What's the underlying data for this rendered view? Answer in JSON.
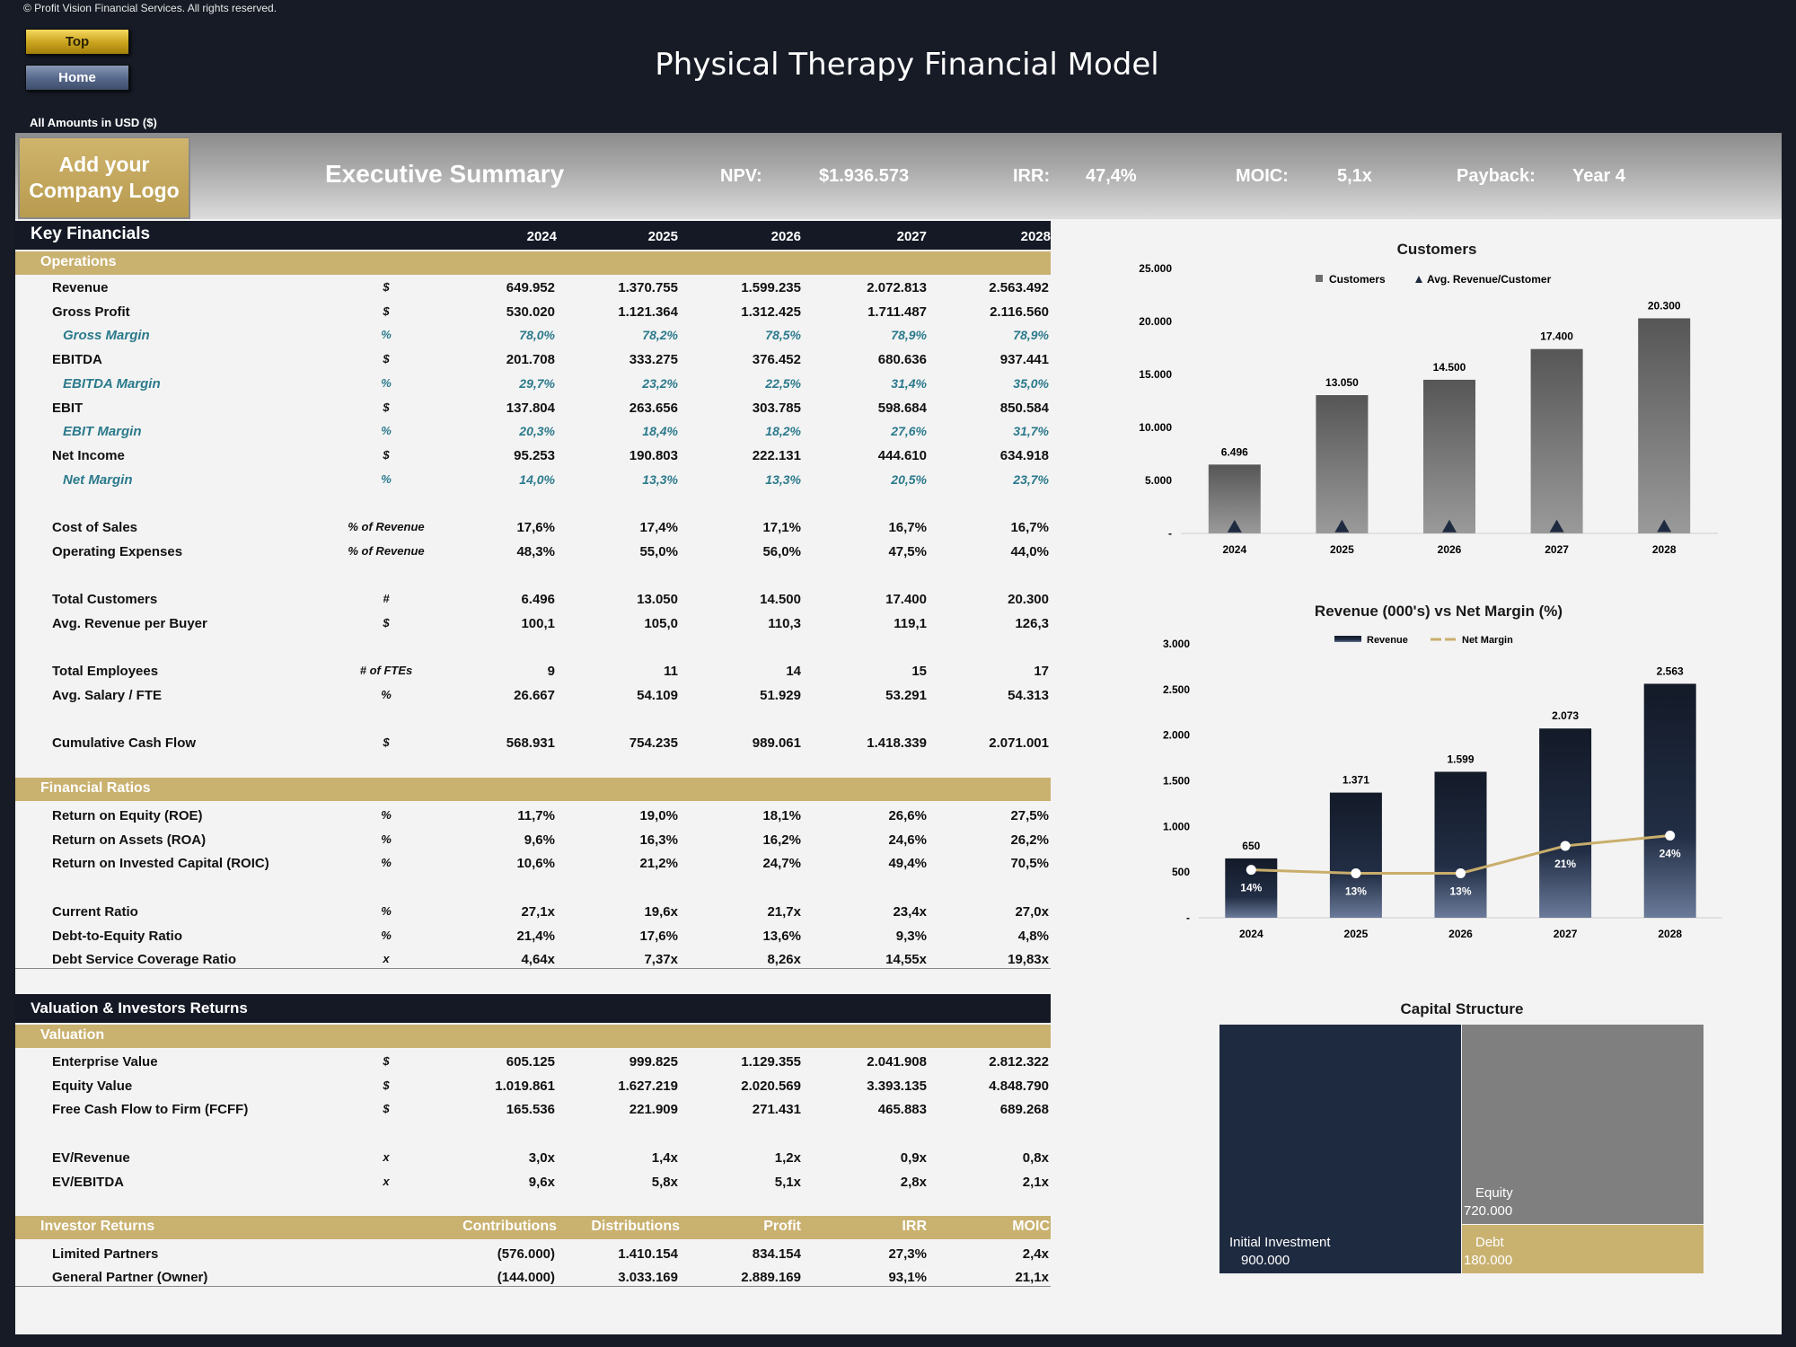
{
  "copyright": "© Profit Vision Financial Services. All rights reserved.",
  "nav": {
    "top_label": "Top",
    "home_label": "Home"
  },
  "title": "Physical Therapy Financial Model",
  "amounts_note": "All Amounts in  USD ($)",
  "logo_text": "Add your Company Logo",
  "exec_title": "Executive Summary",
  "kpis": [
    {
      "label": "NPV:",
      "value": "$1.936.573"
    },
    {
      "label": "IRR:",
      "value": "47,4%"
    },
    {
      "label": "MOIC:",
      "value": "5,1x"
    },
    {
      "label": "Payback:",
      "value": "Year 4"
    }
  ],
  "key_financials": {
    "title": "Key Financials",
    "years": [
      "2024",
      "2025",
      "2026",
      "2027",
      "2028"
    ],
    "operations_label": "Operations",
    "operations": [
      {
        "label": "Revenue",
        "unit": "$",
        "values": [
          "649.952",
          "1.370.755",
          "1.599.235",
          "2.072.813",
          "2.563.492"
        ],
        "sub": false
      },
      {
        "label": "Gross Profit",
        "unit": "$",
        "values": [
          "530.020",
          "1.121.364",
          "1.312.425",
          "1.711.487",
          "2.116.560"
        ],
        "sub": false
      },
      {
        "label": "Gross Margin",
        "unit": "%",
        "values": [
          "78,0%",
          "78,2%",
          "78,5%",
          "78,9%",
          "78,9%"
        ],
        "sub": true
      },
      {
        "label": "EBITDA",
        "unit": "$",
        "values": [
          "201.708",
          "333.275",
          "376.452",
          "680.636",
          "937.441"
        ],
        "sub": false
      },
      {
        "label": "EBITDA Margin",
        "unit": "%",
        "values": [
          "29,7%",
          "23,2%",
          "22,5%",
          "31,4%",
          "35,0%"
        ],
        "sub": true
      },
      {
        "label": "EBIT",
        "unit": "$",
        "values": [
          "137.804",
          "263.656",
          "303.785",
          "598.684",
          "850.584"
        ],
        "sub": false
      },
      {
        "label": "EBIT Margin",
        "unit": "%",
        "values": [
          "20,3%",
          "18,4%",
          "18,2%",
          "27,6%",
          "31,7%"
        ],
        "sub": true
      },
      {
        "label": "Net Income",
        "unit": "$",
        "values": [
          "95.253",
          "190.803",
          "222.131",
          "444.610",
          "634.918"
        ],
        "sub": false
      },
      {
        "label": "Net Margin",
        "unit": "%",
        "values": [
          "14,0%",
          "13,3%",
          "13,3%",
          "20,5%",
          "23,7%"
        ],
        "sub": true
      }
    ],
    "costs": [
      {
        "label": "Cost of Sales",
        "unit": "% of Revenue",
        "values": [
          "17,6%",
          "17,4%",
          "17,1%",
          "16,7%",
          "16,7%"
        ]
      },
      {
        "label": "Operating Expenses",
        "unit": "% of Revenue",
        "values": [
          "48,3%",
          "55,0%",
          "56,0%",
          "47,5%",
          "44,0%"
        ]
      }
    ],
    "customers": [
      {
        "label": "Total Customers",
        "unit": "#",
        "values": [
          "6.496",
          "13.050",
          "14.500",
          "17.400",
          "20.300"
        ]
      },
      {
        "label": "Avg. Revenue per Buyer",
        "unit": "$",
        "values": [
          "100,1",
          "105,0",
          "110,3",
          "119,1",
          "126,3"
        ]
      }
    ],
    "employees": [
      {
        "label": "Total Employees",
        "unit": "# of FTEs",
        "values": [
          "9",
          "11",
          "14",
          "15",
          "17"
        ]
      },
      {
        "label": "Avg. Salary / FTE",
        "unit": "%",
        "values": [
          "26.667",
          "54.109",
          "51.929",
          "53.291",
          "54.313"
        ]
      }
    ],
    "cash": [
      {
        "label": "Cumulative Cash Flow",
        "unit": "$",
        "values": [
          "568.931",
          "754.235",
          "989.061",
          "1.418.339",
          "2.071.001"
        ]
      }
    ],
    "ratios_label": "Financial Ratios",
    "ratios": [
      {
        "label": "Return on Equity (ROE)",
        "unit": "%",
        "values": [
          "11,7%",
          "19,0%",
          "18,1%",
          "26,6%",
          "27,5%"
        ]
      },
      {
        "label": "Return on Assets (ROA)",
        "unit": "%",
        "values": [
          "9,6%",
          "16,3%",
          "16,2%",
          "24,6%",
          "26,2%"
        ]
      },
      {
        "label": "Return on Invested Capital (ROIC)",
        "unit": "%",
        "values": [
          "10,6%",
          "21,2%",
          "24,7%",
          "49,4%",
          "70,5%"
        ]
      }
    ],
    "ratios2": [
      {
        "label": "Current Ratio",
        "unit": "%",
        "values": [
          "27,1x",
          "19,6x",
          "21,7x",
          "23,4x",
          "27,0x"
        ]
      },
      {
        "label": "Debt-to-Equity Ratio",
        "unit": "%",
        "values": [
          "21,4%",
          "17,6%",
          "13,6%",
          "9,3%",
          "4,8%"
        ]
      },
      {
        "label": "Debt Service Coverage Ratio",
        "unit": "x",
        "values": [
          "4,64x",
          "7,37x",
          "8,26x",
          "14,55x",
          "19,83x"
        ]
      }
    ]
  },
  "valuation": {
    "title": "Valuation & Investors Returns",
    "valuation_label": "Valuation",
    "rows": [
      {
        "label": "Enterprise Value",
        "unit": "$",
        "values": [
          "605.125",
          "999.825",
          "1.129.355",
          "2.041.908",
          "2.812.322"
        ]
      },
      {
        "label": "Equity Value",
        "unit": "$",
        "values": [
          "1.019.861",
          "1.627.219",
          "2.020.569",
          "3.393.135",
          "4.848.790"
        ]
      },
      {
        "label": "Free Cash Flow to Firm (FCFF)",
        "unit": "$",
        "values": [
          "165.536",
          "221.909",
          "271.431",
          "465.883",
          "689.268"
        ]
      }
    ],
    "multiples": [
      {
        "label": "EV/Revenue",
        "unit": "x",
        "values": [
          "3,0x",
          "1,4x",
          "1,2x",
          "0,9x",
          "0,8x"
        ]
      },
      {
        "label": "EV/EBITDA",
        "unit": "x",
        "values": [
          "9,6x",
          "5,8x",
          "5,1x",
          "2,8x",
          "2,1x"
        ]
      }
    ],
    "investor_label": "Investor Returns",
    "investor_headers": [
      "Contributions",
      "Distributions",
      "Profit",
      "IRR",
      "MOIC"
    ],
    "investors": [
      {
        "label": "Limited Partners",
        "values": [
          "(576.000)",
          "1.410.154",
          "834.154",
          "27,3%",
          "2,4x"
        ]
      },
      {
        "label": "General Partner (Owner)",
        "values": [
          "(144.000)",
          "3.033.169",
          "2.889.169",
          "93,1%",
          "21,1x"
        ]
      }
    ]
  },
  "chart_data": [
    {
      "type": "bar",
      "title": "Customers",
      "categories": [
        "2024",
        "2025",
        "2026",
        "2027",
        "2028"
      ],
      "series": [
        {
          "name": "Customers",
          "values": [
            6496,
            13050,
            14500,
            17400,
            20300
          ],
          "labels": [
            "6.496",
            "13.050",
            "14.500",
            "17.400",
            "20.300"
          ]
        },
        {
          "name": "Avg. Revenue/Customer",
          "values": [
            100.1,
            105.0,
            110.3,
            119.1,
            126.3
          ]
        }
      ],
      "ylim": [
        0,
        25000
      ],
      "yticks": [
        "-",
        "5.000",
        "10.000",
        "15.000",
        "20.000",
        "25.000"
      ],
      "legend": "top",
      "colors": {
        "bar": "#6e6e6e",
        "marker": "#1e2a40"
      }
    },
    {
      "type": "bar",
      "title": "Revenue (000's) vs Net Margin (%)",
      "categories": [
        "2024",
        "2025",
        "2026",
        "2027",
        "2028"
      ],
      "series": [
        {
          "name": "Revenue",
          "values": [
            650,
            1371,
            1599,
            2073,
            2563
          ],
          "labels": [
            "650",
            "1.371",
            "1.599",
            "2.073",
            "2.563"
          ]
        },
        {
          "name": "Net Margin",
          "values": [
            14,
            13,
            13,
            21,
            24
          ],
          "labels": [
            "14%",
            "13%",
            "13%",
            "21%",
            "24%"
          ]
        }
      ],
      "ylim": [
        0,
        3000
      ],
      "yticks": [
        "-",
        "500",
        "1.000",
        "1.500",
        "2.000",
        "2.500",
        "3.000"
      ],
      "legend": "top",
      "colors": {
        "bar": "#1a2233",
        "line": "#c9ae6b"
      }
    },
    {
      "type": "treemap",
      "title": "Capital Structure",
      "items": [
        {
          "label": "Initial Investment",
          "value": 900000,
          "display": "900.000",
          "color": "#1e2a40"
        },
        {
          "label": "Equity",
          "value": 720000,
          "display": "720.000",
          "color": "#7f7f7f"
        },
        {
          "label": "Debt",
          "value": 180000,
          "display": "180.000",
          "color": "#c9b170"
        }
      ]
    }
  ]
}
